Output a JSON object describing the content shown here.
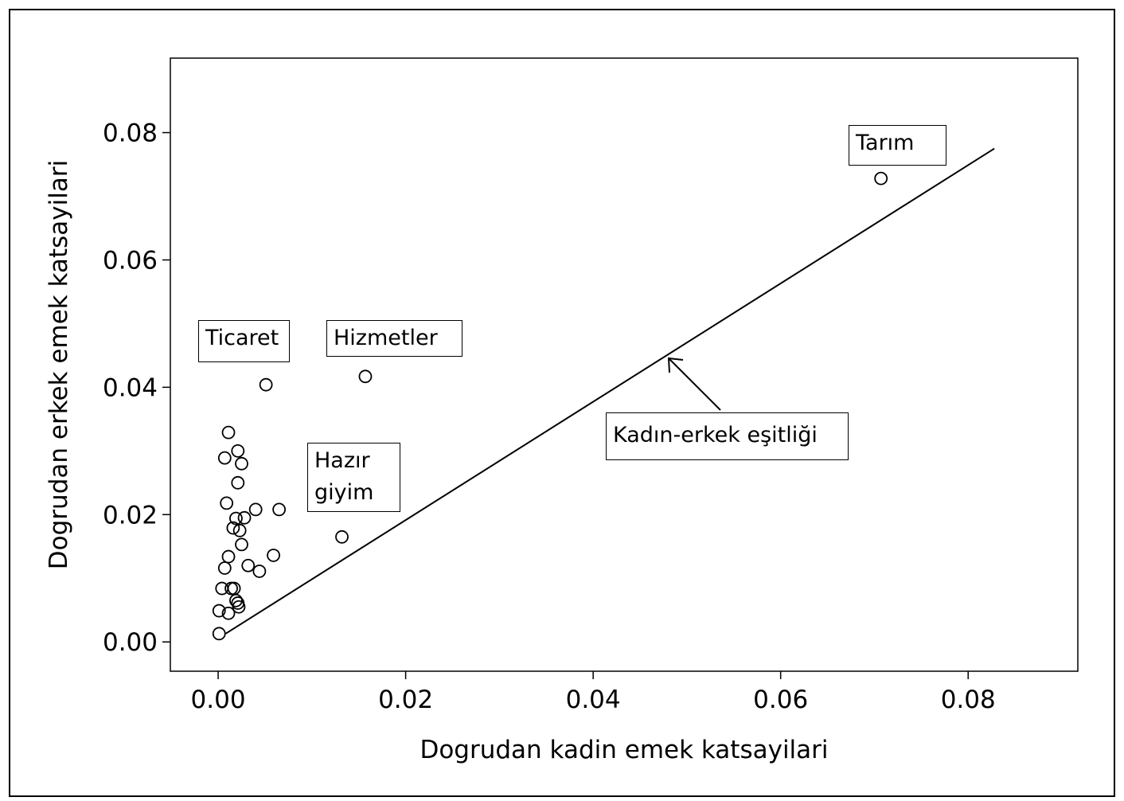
{
  "chart_data": {
    "type": "scatter",
    "x_label": "Dogrudan kadin emek katsayilari",
    "y_label": "Dogrudan erkek emek katsayilari",
    "x": [
      0.0707,
      0.0157,
      0.0051,
      0.0132,
      0.0011,
      0.0007,
      0.0021,
      0.0025,
      0.0021,
      0.0009,
      0.004,
      0.0065,
      0.0019,
      0.0028,
      0.0016,
      0.0023,
      0.0025,
      0.0059,
      0.0011,
      0.0007,
      0.0032,
      0.0044,
      0.0004,
      0.0014,
      0.0017,
      0.0019,
      0.0021,
      0.0022,
      0.0001,
      0.0011,
      0.0001
    ],
    "values": [
      0.0728,
      0.0417,
      0.0404,
      0.0165,
      0.0329,
      0.0289,
      0.03,
      0.028,
      0.025,
      0.0218,
      0.0208,
      0.0208,
      0.0194,
      0.0195,
      0.0179,
      0.0175,
      0.0153,
      0.0136,
      0.0134,
      0.0116,
      0.012,
      0.0111,
      0.0084,
      0.0084,
      0.0084,
      0.0065,
      0.0061,
      0.0055,
      0.0049,
      0.0045,
      0.0013
    ],
    "equality_line": {
      "x": [
        0.0008,
        0.0828
      ],
      "values": [
        0.0013,
        0.0775
      ]
    },
    "annotations": [
      "Tarım",
      "Hizmetler",
      "Ticaret",
      "Hazır giyim",
      "Kadın-erkek eşitliği"
    ],
    "xlim": [
      -0.0051,
      0.0917
    ],
    "ylim": [
      -0.0046,
      0.0917
    ],
    "xticks": [
      {
        "value": 0,
        "label": "0.00"
      },
      {
        "value": 0.02,
        "label": "0.02"
      },
      {
        "value": 0.04,
        "label": "0.04"
      },
      {
        "value": 0.06,
        "label": "0.06"
      },
      {
        "value": 0.08,
        "label": "0.08"
      }
    ],
    "yticks": [
      {
        "value": 0,
        "label": "0.00"
      },
      {
        "value": 0.02,
        "label": "0.02"
      },
      {
        "value": 0.04,
        "label": "0.04"
      },
      {
        "value": 0.06,
        "label": "0.06"
      },
      {
        "value": 0.08,
        "label": "0.08"
      }
    ],
    "grid": false
  }
}
